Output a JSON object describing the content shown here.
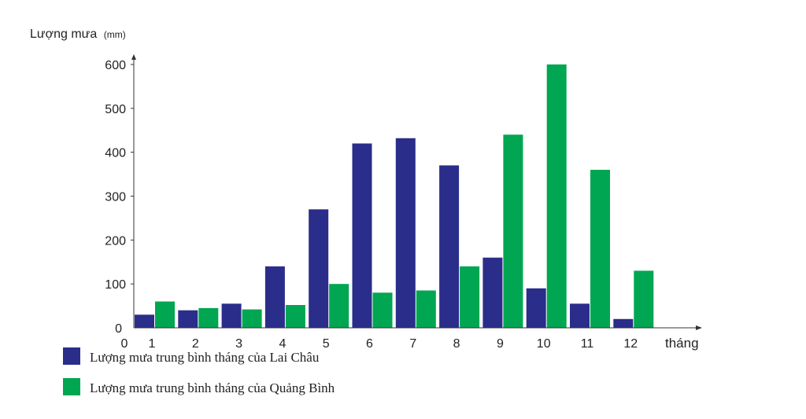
{
  "chart_data": {
    "type": "bar",
    "ylabel": "Lượng mưa",
    "ylabel_unit": "(mm)",
    "xlabel": "tháng",
    "origin_label": "0",
    "categories": [
      "1",
      "2",
      "3",
      "4",
      "5",
      "6",
      "7",
      "8",
      "9",
      "10",
      "11",
      "12"
    ],
    "ylim": [
      0,
      600
    ],
    "yticks": [
      0,
      100,
      200,
      300,
      400,
      500,
      600
    ],
    "grid": false,
    "legend_position": "bottom-left",
    "series": [
      {
        "name": "Lượng mưa trung bình tháng của Lai Châu",
        "color": "#2b2d8a",
        "values": [
          30,
          40,
          55,
          140,
          270,
          420,
          432,
          370,
          160,
          90,
          55,
          20
        ]
      },
      {
        "name": "Lượng mưa trung bình tháng của Quảng Bình",
        "color": "#00a651",
        "values": [
          60,
          45,
          42,
          52,
          100,
          80,
          85,
          140,
          440,
          600,
          360,
          130
        ]
      }
    ]
  }
}
